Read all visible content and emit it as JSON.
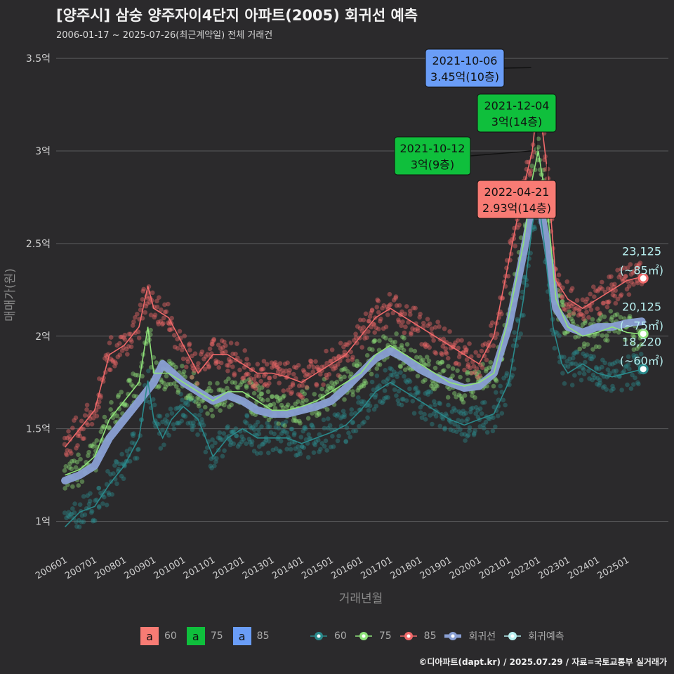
{
  "title": "[양주시] 삼숭 양주자이4단지 아파트(2005) 회귀선 예측",
  "subtitle": "2006-01-17 ~ 2025-07-26(최근계약일) 전체 거래건",
  "caption": "©디아파트(dapt.kr) / 2025.07.29 / 자료=국토교통부 실거래가",
  "colors": {
    "s60": "#2a8a8c",
    "s75": "#8fe37a",
    "s85": "#f0696a",
    "trend": "#8aa0d4",
    "pred": "#b8f0f0",
    "box60": "#f87b74",
    "box75": "#0fbf3c",
    "box85": "#6a9df7"
  },
  "chart_data": {
    "type": "scatter",
    "xlabel": "거래년월",
    "ylabel": "매매가(원)",
    "ylim": [
      0.82,
      3.58
    ],
    "yticks": [
      1,
      1.5,
      2,
      2.5,
      3,
      3.5
    ],
    "ytick_labels": [
      "1억",
      "1.5억",
      "2억",
      "2.5억",
      "3억",
      "3.5억"
    ],
    "xticks": [
      2006,
      2007,
      2008,
      2009,
      2010,
      2011,
      2012,
      2013,
      2014,
      2015,
      2016,
      2017,
      2018,
      2019,
      2020,
      2021,
      2022,
      2023,
      2024,
      2025
    ],
    "xtick_labels": [
      "200601",
      "200701",
      "200801",
      "200901",
      "201001",
      "201101",
      "201201",
      "201301",
      "201401",
      "201501",
      "201601",
      "201701",
      "201801",
      "201901",
      "202001",
      "202101",
      "202201",
      "202301",
      "202401",
      "202501"
    ],
    "series": [
      {
        "name": "60",
        "points": [
          [
            2006.0,
            0.97
          ],
          [
            2006.5,
            1.05
          ],
          [
            2007.0,
            1.08
          ],
          [
            2007.5,
            1.2
          ],
          [
            2008.0,
            1.3
          ],
          [
            2008.5,
            1.45
          ],
          [
            2008.8,
            1.76
          ],
          [
            2009.0,
            1.55
          ],
          [
            2009.3,
            1.45
          ],
          [
            2009.6,
            1.55
          ],
          [
            2010.0,
            1.62
          ],
          [
            2010.5,
            1.55
          ],
          [
            2011.0,
            1.35
          ],
          [
            2011.5,
            1.45
          ],
          [
            2012.0,
            1.5
          ],
          [
            2012.5,
            1.45
          ],
          [
            2013.0,
            1.45
          ],
          [
            2013.5,
            1.45
          ],
          [
            2014.0,
            1.42
          ],
          [
            2014.5,
            1.45
          ],
          [
            2015.0,
            1.48
          ],
          [
            2015.5,
            1.52
          ],
          [
            2016.0,
            1.6
          ],
          [
            2016.5,
            1.7
          ],
          [
            2017.0,
            1.75
          ],
          [
            2017.5,
            1.7
          ],
          [
            2018.0,
            1.65
          ],
          [
            2018.5,
            1.6
          ],
          [
            2019.0,
            1.55
          ],
          [
            2019.5,
            1.52
          ],
          [
            2020.0,
            1.55
          ],
          [
            2020.5,
            1.58
          ],
          [
            2021.0,
            1.75
          ],
          [
            2021.5,
            2.2
          ],
          [
            2021.8,
            2.6
          ],
          [
            2022.0,
            2.75
          ],
          [
            2022.2,
            2.5
          ],
          [
            2022.5,
            2.05
          ],
          [
            2022.8,
            1.85
          ],
          [
            2023.0,
            1.8
          ],
          [
            2023.5,
            1.85
          ],
          [
            2024.0,
            1.8
          ],
          [
            2024.5,
            1.78
          ],
          [
            2025.0,
            1.8
          ],
          [
            2025.5,
            1.82
          ]
        ]
      },
      {
        "name": "75",
        "points": [
          [
            2006.0,
            1.25
          ],
          [
            2006.5,
            1.28
          ],
          [
            2007.0,
            1.35
          ],
          [
            2007.5,
            1.55
          ],
          [
            2008.0,
            1.65
          ],
          [
            2008.5,
            1.75
          ],
          [
            2008.8,
            2.05
          ],
          [
            2009.0,
            1.8
          ],
          [
            2009.5,
            1.8
          ],
          [
            2010.0,
            1.75
          ],
          [
            2010.5,
            1.7
          ],
          [
            2011.0,
            1.65
          ],
          [
            2011.5,
            1.7
          ],
          [
            2012.0,
            1.7
          ],
          [
            2012.5,
            1.65
          ],
          [
            2013.0,
            1.6
          ],
          [
            2013.5,
            1.6
          ],
          [
            2014.0,
            1.62
          ],
          [
            2014.5,
            1.65
          ],
          [
            2015.0,
            1.7
          ],
          [
            2015.5,
            1.75
          ],
          [
            2016.0,
            1.8
          ],
          [
            2016.5,
            1.9
          ],
          [
            2017.0,
            1.95
          ],
          [
            2017.5,
            1.9
          ],
          [
            2018.0,
            1.85
          ],
          [
            2018.5,
            1.8
          ],
          [
            2019.0,
            1.75
          ],
          [
            2019.5,
            1.73
          ],
          [
            2020.0,
            1.75
          ],
          [
            2020.5,
            1.8
          ],
          [
            2021.0,
            2.1
          ],
          [
            2021.5,
            2.5
          ],
          [
            2021.8,
            2.85
          ],
          [
            2022.0,
            3.0
          ],
          [
            2022.3,
            2.7
          ],
          [
            2022.6,
            2.2
          ],
          [
            2023.0,
            2.05
          ],
          [
            2023.5,
            2.0
          ],
          [
            2024.0,
            2.02
          ],
          [
            2024.5,
            2.05
          ],
          [
            2025.0,
            2.02
          ],
          [
            2025.5,
            2.01
          ]
        ]
      },
      {
        "name": "85",
        "points": [
          [
            2006.0,
            1.4
          ],
          [
            2006.5,
            1.5
          ],
          [
            2007.0,
            1.6
          ],
          [
            2007.5,
            1.9
          ],
          [
            2008.0,
            1.95
          ],
          [
            2008.5,
            2.05
          ],
          [
            2008.8,
            2.27
          ],
          [
            2009.0,
            2.15
          ],
          [
            2009.5,
            2.1
          ],
          [
            2010.0,
            1.95
          ],
          [
            2010.5,
            1.8
          ],
          [
            2011.0,
            1.9
          ],
          [
            2011.5,
            1.9
          ],
          [
            2012.0,
            1.85
          ],
          [
            2012.5,
            1.8
          ],
          [
            2013.0,
            1.8
          ],
          [
            2013.5,
            1.78
          ],
          [
            2014.0,
            1.75
          ],
          [
            2014.5,
            1.8
          ],
          [
            2015.0,
            1.85
          ],
          [
            2015.5,
            1.9
          ],
          [
            2016.0,
            2.0
          ],
          [
            2016.5,
            2.1
          ],
          [
            2017.0,
            2.15
          ],
          [
            2017.5,
            2.1
          ],
          [
            2018.0,
            2.05
          ],
          [
            2018.5,
            2.0
          ],
          [
            2019.0,
            1.95
          ],
          [
            2019.5,
            1.9
          ],
          [
            2020.0,
            1.85
          ],
          [
            2020.5,
            2.0
          ],
          [
            2021.0,
            2.4
          ],
          [
            2021.5,
            2.8
          ],
          [
            2021.8,
            3.0
          ],
          [
            2022.0,
            3.3
          ],
          [
            2022.3,
            2.9
          ],
          [
            2022.6,
            2.3
          ],
          [
            2023.0,
            2.2
          ],
          [
            2023.5,
            2.15
          ],
          [
            2024.0,
            2.2
          ],
          [
            2024.5,
            2.25
          ],
          [
            2025.0,
            2.3
          ],
          [
            2025.5,
            2.32
          ]
        ]
      },
      {
        "name": "회귀선",
        "points": [
          [
            2006.0,
            1.22
          ],
          [
            2006.5,
            1.25
          ],
          [
            2007.0,
            1.3
          ],
          [
            2007.5,
            1.45
          ],
          [
            2008.0,
            1.55
          ],
          [
            2008.5,
            1.65
          ],
          [
            2009.0,
            1.75
          ],
          [
            2009.3,
            1.85
          ],
          [
            2010.0,
            1.75
          ],
          [
            2010.5,
            1.7
          ],
          [
            2011.0,
            1.65
          ],
          [
            2011.5,
            1.68
          ],
          [
            2012.0,
            1.65
          ],
          [
            2012.5,
            1.6
          ],
          [
            2013.0,
            1.58
          ],
          [
            2013.5,
            1.58
          ],
          [
            2014.0,
            1.6
          ],
          [
            2014.5,
            1.62
          ],
          [
            2015.0,
            1.65
          ],
          [
            2015.5,
            1.72
          ],
          [
            2016.0,
            1.8
          ],
          [
            2016.5,
            1.88
          ],
          [
            2017.0,
            1.92
          ],
          [
            2017.5,
            1.88
          ],
          [
            2018.0,
            1.82
          ],
          [
            2018.5,
            1.78
          ],
          [
            2019.0,
            1.75
          ],
          [
            2019.5,
            1.72
          ],
          [
            2020.0,
            1.73
          ],
          [
            2020.5,
            1.8
          ],
          [
            2021.0,
            2.05
          ],
          [
            2021.5,
            2.45
          ],
          [
            2021.8,
            2.7
          ],
          [
            2022.0,
            2.75
          ],
          [
            2022.3,
            2.5
          ],
          [
            2022.6,
            2.15
          ],
          [
            2023.0,
            2.05
          ],
          [
            2023.5,
            2.02
          ],
          [
            2024.0,
            2.05
          ],
          [
            2024.5,
            2.05
          ],
          [
            2025.0,
            2.07
          ],
          [
            2025.5,
            2.08
          ]
        ]
      }
    ],
    "predictions": [
      {
        "name": "85",
        "x": 2025.55,
        "y": 2.3125,
        "value": "23,125",
        "area": "(~85㎡)"
      },
      {
        "name": "75",
        "x": 2025.55,
        "y": 2.0125,
        "value": "20,125",
        "area": "(~75㎡)"
      },
      {
        "name": "60",
        "x": 2025.55,
        "y": 1.822,
        "value": "18,220",
        "area": "(~60㎡)"
      }
    ],
    "annotations": [
      {
        "date": "2021-10-06",
        "price": "3.45억(10층)",
        "x": 2021.76,
        "y": 3.45,
        "series": "85"
      },
      {
        "date": "2021-12-04",
        "price": "3억(14층)",
        "x": 2021.93,
        "y": 3.0,
        "series": "75"
      },
      {
        "date": "2021-10-12",
        "price": "3억(9층)",
        "x": 2021.78,
        "y": 3.0,
        "series": "75"
      },
      {
        "date": "2022-04-21",
        "price": "2.93억(14층)",
        "x": 2022.3,
        "y": 2.93,
        "series": "60"
      }
    ],
    "legend_boxes": [
      {
        "glyph": "a",
        "label": "60",
        "color": "box60"
      },
      {
        "glyph": "a",
        "label": "75",
        "color": "box75"
      },
      {
        "glyph": "a",
        "label": "85",
        "color": "box85"
      }
    ],
    "legend_lines": [
      {
        "label": "60",
        "color": "s60"
      },
      {
        "label": "75",
        "color": "s75"
      },
      {
        "label": "85",
        "color": "s85"
      },
      {
        "label": "회귀선",
        "color": "trend"
      },
      {
        "label": "회귀예측",
        "color": "pred"
      }
    ],
    "legend_position": "bottom",
    "grid": true
  }
}
